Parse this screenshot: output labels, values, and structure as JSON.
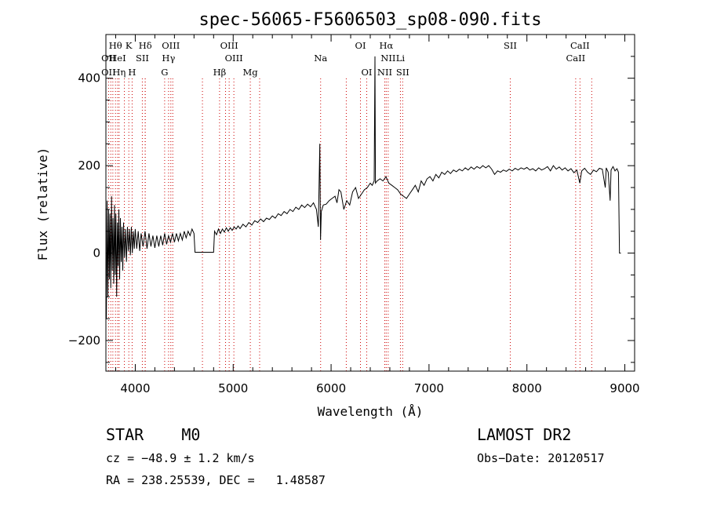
{
  "chart_data": {
    "type": "line",
    "title": "spec-56065-F5606503_sp08-090.fits",
    "xlabel": "Wavelength (Å)",
    "ylabel": "Flux (relative)",
    "xlim": [
      3700,
      9100
    ],
    "ylim": [
      -270,
      500
    ],
    "xticks": [
      4000,
      5000,
      6000,
      7000,
      8000,
      9000
    ],
    "yticks": [
      -200,
      0,
      200,
      400
    ],
    "grid": false,
    "series": [
      {
        "points": [
          [
            3705,
            -150
          ],
          [
            3712,
            120
          ],
          [
            3720,
            -100
          ],
          [
            3728,
            100
          ],
          [
            3735,
            -60
          ],
          [
            3742,
            90
          ],
          [
            3750,
            -80
          ],
          [
            3758,
            130
          ],
          [
            3765,
            -40
          ],
          [
            3772,
            80
          ],
          [
            3780,
            -70
          ],
          [
            3788,
            110
          ],
          [
            3795,
            -50
          ],
          [
            3802,
            90
          ],
          [
            3810,
            -100
          ],
          [
            3818,
            70
          ],
          [
            3825,
            -30
          ],
          [
            3832,
            100
          ],
          [
            3840,
            -60
          ],
          [
            3848,
            80
          ],
          [
            3856,
            -20
          ],
          [
            3864,
            60
          ],
          [
            3872,
            -40
          ],
          [
            3880,
            70
          ],
          [
            3890,
            -10
          ],
          [
            3900,
            55
          ],
          [
            3910,
            -20
          ],
          [
            3920,
            60
          ],
          [
            3930,
            5
          ],
          [
            3940,
            55
          ],
          [
            3950,
            -5
          ],
          [
            3960,
            60
          ],
          [
            3970,
            0
          ],
          [
            3980,
            50
          ],
          [
            3990,
            10
          ],
          [
            4000,
            55
          ],
          [
            4015,
            10
          ],
          [
            4030,
            50
          ],
          [
            4045,
            5
          ],
          [
            4060,
            45
          ],
          [
            4080,
            15
          ],
          [
            4100,
            50
          ],
          [
            4120,
            10
          ],
          [
            4140,
            45
          ],
          [
            4160,
            15
          ],
          [
            4180,
            40
          ],
          [
            4200,
            12
          ],
          [
            4220,
            40
          ],
          [
            4240,
            15
          ],
          [
            4260,
            40
          ],
          [
            4280,
            18
          ],
          [
            4300,
            45
          ],
          [
            4320,
            20
          ],
          [
            4340,
            40
          ],
          [
            4360,
            25
          ],
          [
            4380,
            45
          ],
          [
            4400,
            25
          ],
          [
            4420,
            45
          ],
          [
            4440,
            28
          ],
          [
            4460,
            45
          ],
          [
            4480,
            30
          ],
          [
            4500,
            50
          ],
          [
            4520,
            35
          ],
          [
            4540,
            50
          ],
          [
            4560,
            40
          ],
          [
            4580,
            55
          ],
          [
            4600,
            45
          ],
          [
            4610,
            2
          ],
          [
            4800,
            2
          ],
          [
            4810,
            50
          ],
          [
            4830,
            42
          ],
          [
            4850,
            55
          ],
          [
            4870,
            45
          ],
          [
            4890,
            55
          ],
          [
            4910,
            48
          ],
          [
            4930,
            58
          ],
          [
            4950,
            50
          ],
          [
            4970,
            58
          ],
          [
            4990,
            52
          ],
          [
            5010,
            60
          ],
          [
            5030,
            55
          ],
          [
            5050,
            62
          ],
          [
            5070,
            56
          ],
          [
            5100,
            66
          ],
          [
            5130,
            60
          ],
          [
            5160,
            70
          ],
          [
            5190,
            64
          ],
          [
            5220,
            74
          ],
          [
            5250,
            70
          ],
          [
            5280,
            78
          ],
          [
            5310,
            72
          ],
          [
            5340,
            80
          ],
          [
            5370,
            77
          ],
          [
            5400,
            85
          ],
          [
            5430,
            80
          ],
          [
            5460,
            90
          ],
          [
            5490,
            86
          ],
          [
            5520,
            95
          ],
          [
            5550,
            90
          ],
          [
            5580,
            100
          ],
          [
            5610,
            95
          ],
          [
            5640,
            105
          ],
          [
            5670,
            100
          ],
          [
            5700,
            110
          ],
          [
            5730,
            104
          ],
          [
            5760,
            112
          ],
          [
            5790,
            106
          ],
          [
            5820,
            115
          ],
          [
            5850,
            100
          ],
          [
            5870,
            60
          ],
          [
            5885,
            250
          ],
          [
            5892,
            30
          ],
          [
            5900,
            95
          ],
          [
            5920,
            110
          ],
          [
            5950,
            112
          ],
          [
            5980,
            120
          ],
          [
            6010,
            125
          ],
          [
            6040,
            130
          ],
          [
            6060,
            115
          ],
          [
            6080,
            145
          ],
          [
            6100,
            140
          ],
          [
            6130,
            100
          ],
          [
            6160,
            120
          ],
          [
            6190,
            110
          ],
          [
            6220,
            140
          ],
          [
            6250,
            150
          ],
          [
            6280,
            125
          ],
          [
            6310,
            135
          ],
          [
            6340,
            145
          ],
          [
            6370,
            150
          ],
          [
            6400,
            160
          ],
          [
            6420,
            155
          ],
          [
            6440,
            165
          ],
          [
            6448,
            450
          ],
          [
            6453,
            160
          ],
          [
            6470,
            165
          ],
          [
            6500,
            170
          ],
          [
            6530,
            165
          ],
          [
            6560,
            175
          ],
          [
            6590,
            160
          ],
          [
            6620,
            155
          ],
          [
            6650,
            150
          ],
          [
            6680,
            145
          ],
          [
            6710,
            135
          ],
          [
            6740,
            130
          ],
          [
            6770,
            125
          ],
          [
            6800,
            135
          ],
          [
            6830,
            145
          ],
          [
            6860,
            155
          ],
          [
            6890,
            140
          ],
          [
            6920,
            165
          ],
          [
            6950,
            155
          ],
          [
            6980,
            170
          ],
          [
            7010,
            175
          ],
          [
            7040,
            165
          ],
          [
            7070,
            180
          ],
          [
            7100,
            172
          ],
          [
            7130,
            185
          ],
          [
            7160,
            180
          ],
          [
            7190,
            188
          ],
          [
            7220,
            182
          ],
          [
            7250,
            190
          ],
          [
            7280,
            186
          ],
          [
            7310,
            192
          ],
          [
            7340,
            188
          ],
          [
            7370,
            195
          ],
          [
            7400,
            190
          ],
          [
            7430,
            197
          ],
          [
            7460,
            192
          ],
          [
            7490,
            198
          ],
          [
            7520,
            194
          ],
          [
            7550,
            200
          ],
          [
            7580,
            195
          ],
          [
            7610,
            200
          ],
          [
            7640,
            192
          ],
          [
            7670,
            180
          ],
          [
            7700,
            188
          ],
          [
            7730,
            185
          ],
          [
            7760,
            190
          ],
          [
            7790,
            187
          ],
          [
            7820,
            192
          ],
          [
            7850,
            188
          ],
          [
            7880,
            194
          ],
          [
            7910,
            190
          ],
          [
            7940,
            195
          ],
          [
            7970,
            192
          ],
          [
            8000,
            196
          ],
          [
            8030,
            190
          ],
          [
            8060,
            193
          ],
          [
            8090,
            188
          ],
          [
            8120,
            195
          ],
          [
            8150,
            190
          ],
          [
            8180,
            193
          ],
          [
            8210,
            198
          ],
          [
            8240,
            188
          ],
          [
            8270,
            200
          ],
          [
            8300,
            192
          ],
          [
            8330,
            197
          ],
          [
            8360,
            190
          ],
          [
            8390,
            195
          ],
          [
            8420,
            188
          ],
          [
            8450,
            193
          ],
          [
            8480,
            184
          ],
          [
            8510,
            190
          ],
          [
            8540,
            160
          ],
          [
            8560,
            188
          ],
          [
            8590,
            194
          ],
          [
            8620,
            185
          ],
          [
            8650,
            180
          ],
          [
            8680,
            190
          ],
          [
            8710,
            186
          ],
          [
            8740,
            194
          ],
          [
            8770,
            192
          ],
          [
            8800,
            150
          ],
          [
            8810,
            195
          ],
          [
            8830,
            185
          ],
          [
            8850,
            120
          ],
          [
            8860,
            190
          ],
          [
            8880,
            198
          ],
          [
            8900,
            188
          ],
          [
            8920,
            193
          ],
          [
            8935,
            185
          ],
          [
            8945,
            0
          ],
          [
            8960,
            0
          ]
        ]
      }
    ],
    "line_markers": {
      "color": "#cc0000",
      "upper": [
        {
          "label": "Hθ",
          "wavelength": 3798
        },
        {
          "label": "K",
          "wavelength": 3934
        },
        {
          "label": "Hδ",
          "wavelength": 4102
        },
        {
          "label": "OIII",
          "wavelength": 4363
        },
        {
          "label": "OIII",
          "wavelength": 4959
        },
        {
          "label": "OI",
          "wavelength": 6300
        },
        {
          "label": "Hα",
          "wavelength": 6563
        },
        {
          "label": "SII",
          "wavelength": 7830
        },
        {
          "label": "CaII",
          "wavelength": 8542
        }
      ],
      "middle": [
        {
          "label": "OII",
          "wavelength": 3727
        },
        {
          "label": "HeI",
          "wavelength": 3820
        },
        {
          "label": "SII",
          "wavelength": 4072
        },
        {
          "label": "Hγ",
          "wavelength": 4340
        },
        {
          "label": "OIII",
          "wavelength": 5007
        },
        {
          "label": "Na",
          "wavelength": 5893
        },
        {
          "label": "NII",
          "wavelength": 6583
        },
        {
          "label": "Li",
          "wavelength": 6708
        },
        {
          "label": "CaII",
          "wavelength": 8498
        }
      ],
      "lower": [
        {
          "label": "OII",
          "wavelength": 3727
        },
        {
          "label": "Hη",
          "wavelength": 3835
        },
        {
          "label": "H",
          "wavelength": 3968
        },
        {
          "label": "G",
          "wavelength": 4300
        },
        {
          "label": "Hβ",
          "wavelength": 4861
        },
        {
          "label": "Mg",
          "wavelength": 5175
        },
        {
          "label": "OI",
          "wavelength": 6364
        },
        {
          "label": "NII",
          "wavelength": 6548
        },
        {
          "label": "SII",
          "wavelength": 6731
        }
      ],
      "extra_lines": [
        3750,
        3771,
        3889,
        4101,
        4383,
        4686,
        4922,
        5270,
        6155,
        8662
      ]
    }
  },
  "info": {
    "class": "STAR",
    "subclass": "M0",
    "survey": "LAMOST DR2",
    "cz": "cz = −48.9 ± 1.2 km/s",
    "obs_date": "Obs−Date: 20120517",
    "coords": "RA = 238.25539, DEC =   1.48587"
  }
}
